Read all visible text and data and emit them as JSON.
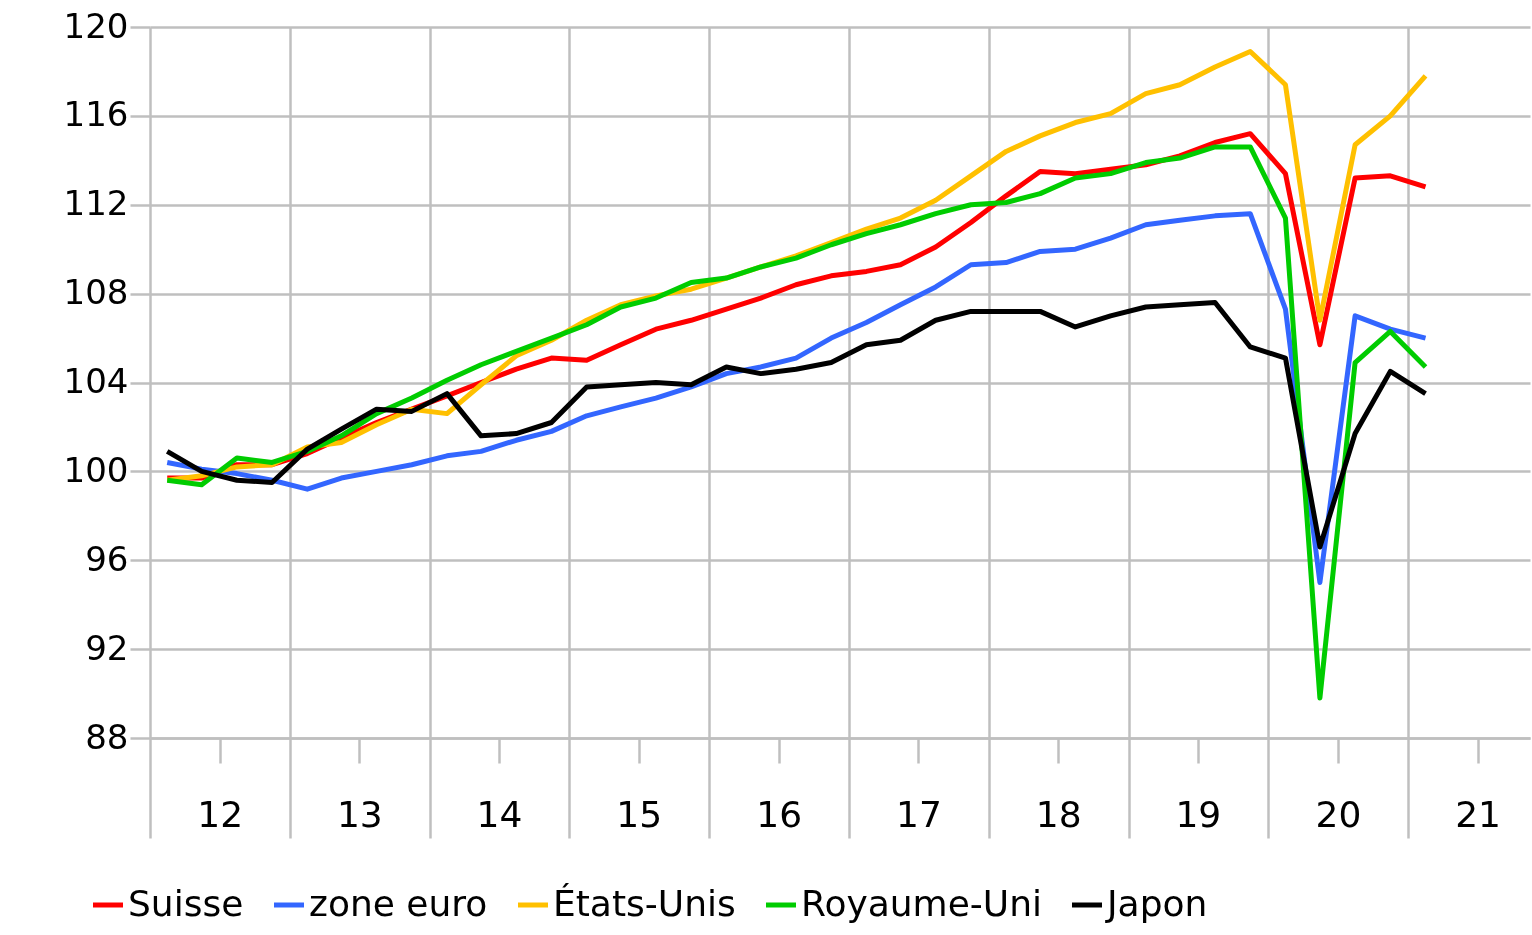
{
  "chart_data": {
    "type": "line",
    "x": [
      "2012-02-15",
      "2012-05-15",
      "2012-08-15",
      "2012-11-15",
      "2013-02-15",
      "2013-05-15",
      "2013-08-15",
      "2013-11-15",
      "2014-02-15",
      "2014-05-15",
      "2014-08-15",
      "2014-11-15",
      "2015-02-15",
      "2015-05-15",
      "2015-08-15",
      "2015-11-15",
      "2016-02-15",
      "2016-05-15",
      "2016-08-15",
      "2016-11-15",
      "2017-02-15",
      "2017-05-15",
      "2017-08-15",
      "2017-11-15",
      "2018-02-15",
      "2018-05-15",
      "2018-08-15",
      "2018-11-15",
      "2019-02-15",
      "2019-05-15",
      "2019-08-15",
      "2019-11-15",
      "2020-02-15",
      "2020-05-15",
      "2020-08-15",
      "2020-11-15",
      "2021-02-15"
    ],
    "series": [
      {
        "name": "Suisse",
        "color": "#ff0000",
        "values": [
          99.7,
          99.7,
          100.3,
          100.3,
          100.8,
          101.5,
          102.2,
          102.8,
          103.4,
          104.0,
          104.6,
          105.1,
          105.0,
          105.7,
          106.4,
          106.8,
          107.3,
          107.8,
          108.4,
          108.8,
          109.0,
          109.3,
          110.1,
          111.2,
          112.4,
          113.5,
          113.4,
          113.6,
          113.8,
          114.2,
          114.8,
          115.2,
          113.4,
          105.7,
          113.2,
          113.3,
          112.8
        ]
      },
      {
        "name": "zone euro",
        "color": "#3366ff",
        "values": [
          100.4,
          100.1,
          99.9,
          99.6,
          99.2,
          99.7,
          100.0,
          100.3,
          100.7,
          100.9,
          101.4,
          101.8,
          102.5,
          102.9,
          103.3,
          103.8,
          104.4,
          104.7,
          105.1,
          106.0,
          106.7,
          107.5,
          108.3,
          109.3,
          109.4,
          109.9,
          110.0,
          110.5,
          111.1,
          111.3,
          111.5,
          111.6,
          107.3,
          95.0,
          107.0,
          106.4,
          106.0
        ]
      },
      {
        "name": "États-Unis",
        "color": "#ffc000",
        "values": [
          99.6,
          99.8,
          100.2,
          100.3,
          101.1,
          101.3,
          102.1,
          102.8,
          102.6,
          103.9,
          105.2,
          105.9,
          106.8,
          107.5,
          107.9,
          108.2,
          108.7,
          109.2,
          109.7,
          110.3,
          110.9,
          111.4,
          112.2,
          113.3,
          114.4,
          115.1,
          115.7,
          116.1,
          117.0,
          117.4,
          118.2,
          118.9,
          117.4,
          106.8,
          114.7,
          116.0,
          117.8
        ]
      },
      {
        "name": "Royaume-Uni",
        "color": "#00cc00",
        "values": [
          99.6,
          99.4,
          100.6,
          100.4,
          100.9,
          101.6,
          102.6,
          103.3,
          104.1,
          104.8,
          105.4,
          106.0,
          106.6,
          107.4,
          107.8,
          108.5,
          108.7,
          109.2,
          109.6,
          110.2,
          110.7,
          111.1,
          111.6,
          112.0,
          112.1,
          112.5,
          113.2,
          113.4,
          113.9,
          114.1,
          114.6,
          114.6,
          111.4,
          89.8,
          104.9,
          106.3,
          104.7
        ]
      },
      {
        "name": "Japon",
        "color": "#000000",
        "values": [
          100.9,
          100.0,
          99.6,
          99.5,
          101.0,
          101.9,
          102.8,
          102.7,
          103.5,
          101.6,
          101.7,
          102.2,
          103.8,
          103.9,
          104.0,
          103.9,
          104.7,
          104.4,
          104.6,
          104.9,
          105.7,
          105.9,
          106.8,
          107.2,
          107.2,
          107.2,
          106.5,
          107.0,
          107.4,
          107.5,
          107.6,
          105.6,
          105.1,
          96.6,
          101.7,
          104.5,
          103.5
        ]
      }
    ],
    "xlim": [
      "2012-01-01",
      "2021-11-15"
    ],
    "xticks": [
      {
        "value": "2012-01-01",
        "label": null
      },
      {
        "value": "2012-07-01",
        "label": "12"
      },
      {
        "value": "2013-01-01",
        "label": null
      },
      {
        "value": "2013-07-01",
        "label": "13"
      },
      {
        "value": "2014-01-01",
        "label": null
      },
      {
        "value": "2014-07-01",
        "label": "14"
      },
      {
        "value": "2015-01-01",
        "label": null
      },
      {
        "value": "2015-07-01",
        "label": "15"
      },
      {
        "value": "2016-01-01",
        "label": null
      },
      {
        "value": "2016-07-01",
        "label": "16"
      },
      {
        "value": "2017-01-01",
        "label": null
      },
      {
        "value": "2017-07-01",
        "label": "17"
      },
      {
        "value": "2018-01-01",
        "label": null
      },
      {
        "value": "2018-07-01",
        "label": "18"
      },
      {
        "value": "2019-01-01",
        "label": null
      },
      {
        "value": "2019-07-01",
        "label": "19"
      },
      {
        "value": "2020-01-01",
        "label": null
      },
      {
        "value": "2020-07-01",
        "label": "20"
      },
      {
        "value": "2021-01-01",
        "label": null
      },
      {
        "value": "2021-07-01",
        "label": "21"
      }
    ],
    "ylim": [
      88,
      120
    ],
    "yticks": [
      88,
      92,
      96,
      100,
      104,
      108,
      112,
      116,
      120
    ],
    "grid": true,
    "legend": "bottom",
    "marker": "none",
    "line_style": "solid"
  }
}
